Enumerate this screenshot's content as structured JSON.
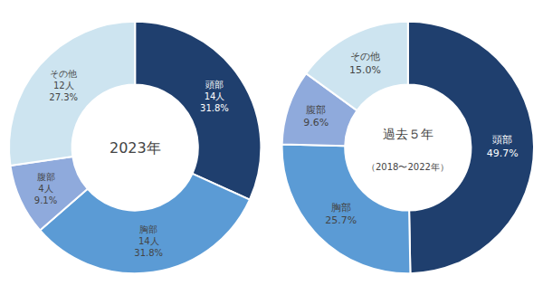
{
  "chart_data": [
    {
      "type": "pie",
      "title": "2023年",
      "categories": [
        "頭部",
        "胸部",
        "腹部",
        "その他"
      ],
      "values": [
        31.8,
        31.8,
        9.1,
        27.3
      ],
      "value_labels": [
        "31.8%",
        "31.8%",
        "9.1%",
        "27.3%"
      ],
      "counts": [
        14,
        14,
        4,
        12
      ],
      "count_labels": [
        "14人",
        "14人",
        "4人",
        "12人"
      ],
      "colors": [
        "#1f3f6e",
        "#5b9bd5",
        "#8faadc",
        "#cde4f0"
      ],
      "data_labels": true
    },
    {
      "type": "pie",
      "title": "過去５年",
      "subtitle": "（2018〜2022年）",
      "categories": [
        "頭部",
        "胸部",
        "腹部",
        "その他"
      ],
      "values": [
        49.7,
        25.7,
        9.6,
        15.0
      ],
      "value_labels": [
        "49.7%",
        "25.7%",
        "9.6%",
        "15.0%"
      ],
      "colors": [
        "#1f3f6e",
        "#5b9bd5",
        "#8faadc",
        "#cde4f0"
      ],
      "data_labels": true
    }
  ]
}
